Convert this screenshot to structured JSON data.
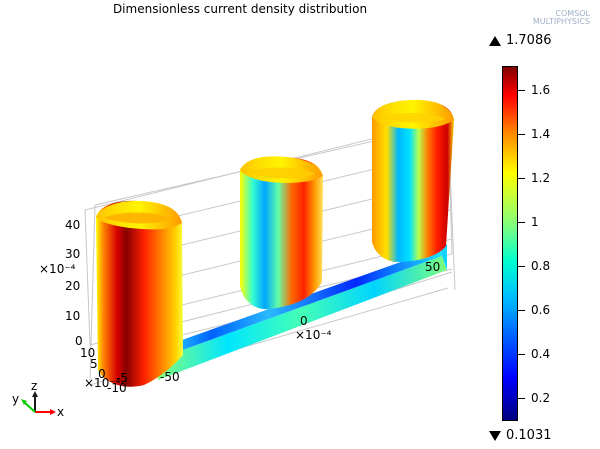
{
  "plot": {
    "title": "Dimensionless current density distribution",
    "logo_text": [
      "COMSOL",
      "MULTIPHYSICS"
    ],
    "colors": {
      "dark_red": "#8b0000",
      "red": "#ff1a00",
      "orange": "#ff8a00",
      "yellow": "#f4ff34",
      "green": "#63ffa8",
      "cyan": "#14d9ff",
      "blue": "#0031ff"
    }
  },
  "colorbar": {
    "max_label": "1.7086",
    "min_label": "0.1031",
    "ticks": [
      "1.6",
      "1.4",
      "1.2",
      "1",
      "0.8",
      "0.6",
      "0.4",
      "0.2"
    ],
    "tick_values": [
      1.6,
      1.4,
      1.2,
      1.0,
      0.8,
      0.6,
      0.4,
      0.2
    ]
  },
  "axes": {
    "z_ticks": [
      "40",
      "30",
      "20",
      "10",
      "0"
    ],
    "z_unit": "×10⁻⁴",
    "x_ticks": [
      "-50",
      "0",
      "50"
    ],
    "x_unit": "×10⁻⁴",
    "y_ticks": [
      "10",
      "5",
      "0",
      "-5",
      "-10"
    ],
    "y_unit": "×10⁻⁴"
  },
  "triad": {
    "x": "x",
    "y": "y",
    "z": "z"
  }
}
